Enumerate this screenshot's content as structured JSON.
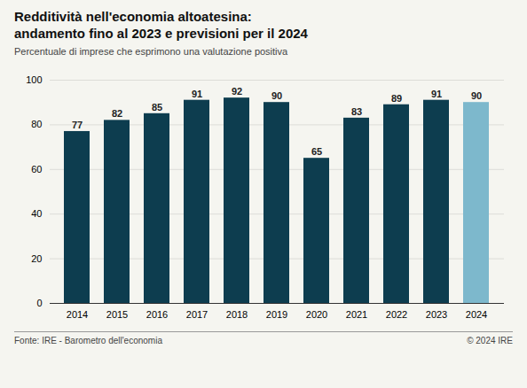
{
  "chart_data": {
    "type": "bar",
    "title": "Redditività nell'economia altoatesina:\nandamento fino al 2023 e previsioni per il 2024",
    "subtitle": "Percentuale di imprese che esprimono una valutazione positiva",
    "categories": [
      "2014",
      "2015",
      "2016",
      "2017",
      "2018",
      "2019",
      "2020",
      "2021",
      "2022",
      "2023",
      "2024"
    ],
    "values": [
      77,
      82,
      85,
      91,
      92,
      90,
      65,
      83,
      89,
      91,
      90
    ],
    "colors": [
      "#0d3d4f",
      "#0d3d4f",
      "#0d3d4f",
      "#0d3d4f",
      "#0d3d4f",
      "#0d3d4f",
      "#0d3d4f",
      "#0d3d4f",
      "#0d3d4f",
      "#0d3d4f",
      "#7db8cc"
    ],
    "ylim": [
      0,
      100
    ],
    "yticks": [
      0,
      20,
      40,
      60,
      80,
      100
    ],
    "grid": true,
    "data_labels": true,
    "annotations": [
      "Fonte: IRE - Barometro dell'economia",
      "© 2024 IRE"
    ]
  }
}
